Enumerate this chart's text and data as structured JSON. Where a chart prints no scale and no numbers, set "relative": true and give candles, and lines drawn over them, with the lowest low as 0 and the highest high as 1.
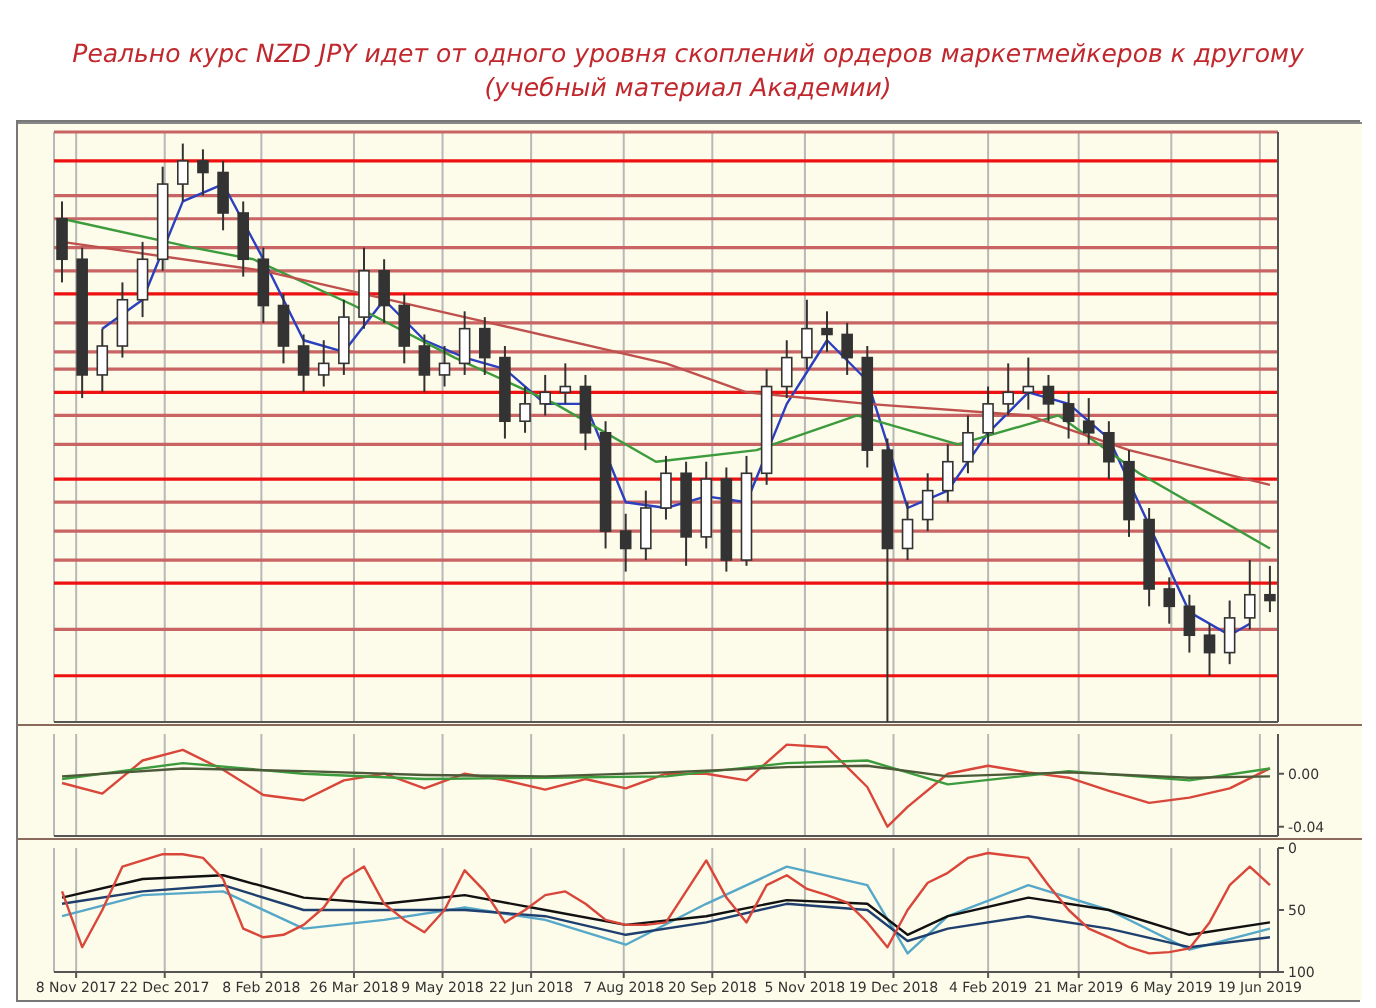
{
  "chart_data": [
    {
      "type": "candlestick",
      "title": "Реально курс NZD JPY идет от одного уровня скоплений ордеров маркетмейкеров к другому",
      "subtitle": "(учебный материал Академии)",
      "relative": true,
      "color": "#333333",
      "grid": "x",
      "legend": false,
      "marker": "none",
      "line_style": "solid",
      "tick_labels": false,
      "xlim": [
        "2017-10-28",
        "2019-06-28"
      ],
      "xticks": [
        "2017-11-08",
        "2017-12-22",
        "2018-02-08",
        "2018-03-26",
        "2018-05-09",
        "2018-06-22",
        "2018-08-07",
        "2018-09-20",
        "2018-11-05",
        "2018-12-19",
        "2019-02-04",
        "2019-03-21",
        "2019-05-06",
        "2019-06-19"
      ],
      "x": [
        "2017-11-01",
        "2017-11-11",
        "2017-11-21",
        "2017-12-01",
        "2017-12-11",
        "2017-12-21",
        "2017-12-31",
        "2018-01-10",
        "2018-01-20",
        "2018-01-30",
        "2018-02-09",
        "2018-02-19",
        "2018-03-01",
        "2018-03-11",
        "2018-03-21",
        "2018-03-31",
        "2018-04-10",
        "2018-04-20",
        "2018-04-30",
        "2018-05-10",
        "2018-05-20",
        "2018-05-30",
        "2018-06-09",
        "2018-06-19",
        "2018-06-29",
        "2018-07-09",
        "2018-07-19",
        "2018-07-29",
        "2018-08-08",
        "2018-08-18",
        "2018-08-28",
        "2018-09-07",
        "2018-09-17",
        "2018-09-27",
        "2018-10-07",
        "2018-10-17",
        "2018-10-27",
        "2018-11-06",
        "2018-11-16",
        "2018-11-26",
        "2018-12-06",
        "2018-12-16",
        "2018-12-26",
        "2019-01-05",
        "2019-01-15",
        "2019-01-25",
        "2019-02-04",
        "2019-02-14",
        "2019-02-24",
        "2019-03-06",
        "2019-03-16",
        "2019-03-26",
        "2019-04-05",
        "2019-04-15",
        "2019-04-25",
        "2019-05-05",
        "2019-05-15",
        "2019-05-25",
        "2019-06-04",
        "2019-06-14",
        "2019-06-24"
      ],
      "ohlc": [
        [
          0.87,
          0.9,
          0.76,
          0.8
        ],
        [
          0.8,
          0.82,
          0.56,
          0.6
        ],
        [
          0.6,
          0.68,
          0.57,
          0.65
        ],
        [
          0.65,
          0.76,
          0.63,
          0.73
        ],
        [
          0.73,
          0.83,
          0.7,
          0.8
        ],
        [
          0.8,
          0.96,
          0.78,
          0.93
        ],
        [
          0.93,
          1.0,
          0.9,
          0.97
        ],
        [
          0.97,
          0.99,
          0.91,
          0.95
        ],
        [
          0.95,
          0.97,
          0.85,
          0.88
        ],
        [
          0.88,
          0.9,
          0.77,
          0.8
        ],
        [
          0.8,
          0.82,
          0.69,
          0.72
        ],
        [
          0.72,
          0.74,
          0.62,
          0.65
        ],
        [
          0.65,
          0.67,
          0.57,
          0.6
        ],
        [
          0.6,
          0.66,
          0.58,
          0.62
        ],
        [
          0.62,
          0.73,
          0.6,
          0.7
        ],
        [
          0.7,
          0.82,
          0.68,
          0.78
        ],
        [
          0.78,
          0.8,
          0.69,
          0.72
        ],
        [
          0.72,
          0.74,
          0.62,
          0.65
        ],
        [
          0.65,
          0.67,
          0.57,
          0.6
        ],
        [
          0.6,
          0.65,
          0.58,
          0.62
        ],
        [
          0.62,
          0.71,
          0.6,
          0.68
        ],
        [
          0.68,
          0.7,
          0.6,
          0.63
        ],
        [
          0.63,
          0.65,
          0.49,
          0.52
        ],
        [
          0.52,
          0.58,
          0.5,
          0.55
        ],
        [
          0.55,
          0.6,
          0.53,
          0.57
        ],
        [
          0.57,
          0.62,
          0.55,
          0.58
        ],
        [
          0.58,
          0.6,
          0.47,
          0.5
        ],
        [
          0.5,
          0.52,
          0.3,
          0.33
        ],
        [
          0.33,
          0.36,
          0.26,
          0.3
        ],
        [
          0.3,
          0.4,
          0.28,
          0.37
        ],
        [
          0.37,
          0.46,
          0.35,
          0.43
        ],
        [
          0.43,
          0.45,
          0.27,
          0.32
        ],
        [
          0.32,
          0.45,
          0.3,
          0.42
        ],
        [
          0.42,
          0.44,
          0.26,
          0.28
        ],
        [
          0.28,
          0.46,
          0.27,
          0.43
        ],
        [
          0.43,
          0.61,
          0.41,
          0.58
        ],
        [
          0.58,
          0.66,
          0.56,
          0.63
        ],
        [
          0.63,
          0.73,
          0.61,
          0.68
        ],
        [
          0.68,
          0.71,
          0.64,
          0.67
        ],
        [
          0.67,
          0.69,
          0.6,
          0.63
        ],
        [
          0.63,
          0.65,
          0.44,
          0.47
        ],
        [
          0.47,
          0.49,
          0.0,
          0.3
        ],
        [
          0.3,
          0.38,
          0.28,
          0.35
        ],
        [
          0.35,
          0.43,
          0.33,
          0.4
        ],
        [
          0.4,
          0.48,
          0.38,
          0.45
        ],
        [
          0.45,
          0.53,
          0.43,
          0.5
        ],
        [
          0.5,
          0.58,
          0.48,
          0.55
        ],
        [
          0.55,
          0.62,
          0.53,
          0.57
        ],
        [
          0.57,
          0.63,
          0.54,
          0.58
        ],
        [
          0.58,
          0.6,
          0.52,
          0.55
        ],
        [
          0.55,
          0.57,
          0.49,
          0.52
        ],
        [
          0.52,
          0.56,
          0.48,
          0.5
        ],
        [
          0.5,
          0.52,
          0.42,
          0.45
        ],
        [
          0.45,
          0.47,
          0.32,
          0.35
        ],
        [
          0.35,
          0.37,
          0.2,
          0.23
        ],
        [
          0.23,
          0.25,
          0.17,
          0.2
        ],
        [
          0.2,
          0.22,
          0.12,
          0.15
        ],
        [
          0.15,
          0.17,
          0.08,
          0.12
        ],
        [
          0.12,
          0.21,
          0.1,
          0.18
        ],
        [
          0.18,
          0.28,
          0.16,
          0.22
        ],
        [
          0.22,
          0.27,
          0.19,
          0.21
        ]
      ],
      "series": [
        {
          "type": "line",
          "color": "#2b3fbf",
          "x": [
            "2017-11-21",
            "2017-12-11",
            "2017-12-31",
            "2018-01-20",
            "2018-02-09",
            "2018-03-01",
            "2018-03-21",
            "2018-04-10",
            "2018-04-30",
            "2018-05-20",
            "2018-06-09",
            "2018-06-29",
            "2018-07-19",
            "2018-08-08",
            "2018-08-28",
            "2018-09-17",
            "2018-10-07",
            "2018-10-27",
            "2018-11-16",
            "2018-12-06",
            "2018-12-26",
            "2019-01-15",
            "2019-02-04",
            "2019-02-24",
            "2019-03-16",
            "2019-04-05",
            "2019-04-25",
            "2019-05-15",
            "2019-06-04",
            "2019-06-14"
          ],
          "values": [
            0.68,
            0.73,
            0.9,
            0.93,
            0.8,
            0.66,
            0.64,
            0.73,
            0.66,
            0.63,
            0.61,
            0.55,
            0.55,
            0.38,
            0.37,
            0.39,
            0.38,
            0.55,
            0.66,
            0.59,
            0.37,
            0.4,
            0.5,
            0.57,
            0.55,
            0.49,
            0.34,
            0.19,
            0.15,
            0.17
          ]
        },
        {
          "type": "line",
          "color": "#3c9b3c",
          "x": [
            "2017-11-01",
            "2018-01-05",
            "2018-02-04",
            "2018-03-26",
            "2018-05-15",
            "2018-07-04",
            "2018-08-23",
            "2018-10-12",
            "2018-12-01",
            "2019-01-20",
            "2019-03-11",
            "2019-04-20",
            "2019-06-24"
          ],
          "values": [
            0.87,
            0.82,
            0.8,
            0.72,
            0.63,
            0.55,
            0.45,
            0.47,
            0.53,
            0.48,
            0.53,
            0.43,
            0.3
          ]
        },
        {
          "type": "line",
          "color": "#c0504d",
          "x": [
            "2017-11-01",
            "2018-02-09",
            "2018-05-20",
            "2018-08-28",
            "2018-10-07",
            "2018-12-06",
            "2019-02-24",
            "2019-04-15",
            "2019-06-24"
          ],
          "values": [
            0.83,
            0.78,
            0.7,
            0.62,
            0.57,
            0.55,
            0.53,
            0.47,
            0.41
          ]
        }
      ],
      "ref_lines": [
        {
          "axis": "y",
          "value": 1.02,
          "color": "#c86464"
        },
        {
          "axis": "y",
          "value": 0.97,
          "color": "#ee1111"
        },
        {
          "axis": "y",
          "value": 0.91,
          "color": "#c86464"
        },
        {
          "axis": "y",
          "value": 0.87,
          "color": "#c86464"
        },
        {
          "axis": "y",
          "value": 0.82,
          "color": "#c86464"
        },
        {
          "axis": "y",
          "value": 0.78,
          "color": "#c86464"
        },
        {
          "axis": "y",
          "value": 0.74,
          "color": "#ee1111"
        },
        {
          "axis": "y",
          "value": 0.69,
          "color": "#c86464"
        },
        {
          "axis": "y",
          "value": 0.64,
          "color": "#c86464"
        },
        {
          "axis": "y",
          "value": 0.61,
          "color": "#c86464"
        },
        {
          "axis": "y",
          "value": 0.57,
          "color": "#ee1111"
        },
        {
          "axis": "y",
          "value": 0.53,
          "color": "#c86464"
        },
        {
          "axis": "y",
          "value": 0.48,
          "color": "#c86464"
        },
        {
          "axis": "y",
          "value": 0.42,
          "color": "#ee1111"
        },
        {
          "axis": "y",
          "value": 0.38,
          "color": "#c86464"
        },
        {
          "axis": "y",
          "value": 0.33,
          "color": "#c86464"
        },
        {
          "axis": "y",
          "value": 0.28,
          "color": "#c86464"
        },
        {
          "axis": "y",
          "value": 0.24,
          "color": "#ee1111"
        },
        {
          "axis": "y",
          "value": 0.16,
          "color": "#c86464"
        },
        {
          "axis": "y",
          "value": 0.08,
          "color": "#ee1111"
        }
      ]
    },
    {
      "type": "line",
      "grid": "x",
      "legend": false,
      "marker": "none",
      "line_style": "solid",
      "tick_labels": "y",
      "xlim": [
        "2017-10-28",
        "2019-06-28"
      ],
      "xticks": [
        "2017-11-08",
        "2017-12-22",
        "2018-02-08",
        "2018-03-26",
        "2018-05-09",
        "2018-06-22",
        "2018-08-07",
        "2018-09-20",
        "2018-11-05",
        "2018-12-19",
        "2019-02-04",
        "2019-03-21",
        "2019-05-06",
        "2019-06-19"
      ],
      "ylim": [
        -0.047,
        0.03
      ],
      "yticks": [
        {
          "value": 0,
          "label": "0.00"
        },
        -0.04
      ],
      "series": [
        {
          "color": "#d9463a",
          "x": [
            "2017-11-01",
            "2017-11-21",
            "2017-12-11",
            "2017-12-31",
            "2018-01-20",
            "2018-02-09",
            "2018-03-01",
            "2018-03-21",
            "2018-04-10",
            "2018-04-30",
            "2018-05-20",
            "2018-06-09",
            "2018-06-29",
            "2018-07-19",
            "2018-08-08",
            "2018-08-28",
            "2018-09-17",
            "2018-10-07",
            "2018-10-27",
            "2018-11-16",
            "2018-12-06",
            "2018-12-16",
            "2018-12-26",
            "2019-01-15",
            "2019-02-04",
            "2019-02-24",
            "2019-03-16",
            "2019-04-05",
            "2019-04-25",
            "2019-05-15",
            "2019-06-04",
            "2019-06-24"
          ],
          "values": [
            -0.007,
            -0.015,
            0.01,
            0.018,
            0.003,
            -0.016,
            -0.02,
            -0.005,
            0,
            -0.011,
            0,
            -0.005,
            -0.012,
            -0.004,
            -0.011,
            0,
            0,
            -0.005,
            0.022,
            0.02,
            -0.01,
            -0.04,
            -0.025,
            0,
            0.006,
            0.001,
            -0.003,
            -0.013,
            -0.022,
            -0.018,
            -0.011,
            0.004
          ]
        },
        {
          "color": "#3c9b3c",
          "x": [
            "2017-11-01",
            "2017-12-31",
            "2018-03-01",
            "2018-04-30",
            "2018-06-29",
            "2018-08-28",
            "2018-10-27",
            "2018-12-06",
            "2019-01-15",
            "2019-03-16",
            "2019-05-15",
            "2019-06-24"
          ],
          "values": [
            -0.004,
            0.008,
            0,
            -0.004,
            -0.003,
            -0.002,
            0.008,
            0.01,
            -0.008,
            0.002,
            -0.005,
            0.004
          ]
        },
        {
          "color": "#4d5a3a",
          "x": [
            "2017-11-01",
            "2017-12-31",
            "2018-03-01",
            "2018-04-30",
            "2018-06-29",
            "2018-08-28",
            "2018-10-27",
            "2018-12-06",
            "2019-01-15",
            "2019-03-16",
            "2019-05-15",
            "2019-06-24"
          ],
          "values": [
            -0.002,
            0.004,
            0.002,
            -0.001,
            -0.002,
            0.001,
            0.005,
            0.006,
            -0.002,
            0.001,
            -0.003,
            -0.002
          ]
        }
      ]
    },
    {
      "type": "line",
      "grid": "x",
      "legend": false,
      "marker": "none",
      "line_style": "solid",
      "xlim": [
        "2017-10-28",
        "2019-06-28"
      ],
      "xticks": [
        {
          "value": "2017-11-08",
          "label": "8 Nov 2017"
        },
        {
          "value": "2017-12-22",
          "label": "22 Dec 2017"
        },
        {
          "value": "2018-02-08",
          "label": "8 Feb 2018"
        },
        {
          "value": "2018-03-26",
          "label": "26 Mar 2018"
        },
        {
          "value": "2018-05-09",
          "label": "9 May 2018"
        },
        {
          "value": "2018-06-22",
          "label": "22 Jun 2018"
        },
        {
          "value": "2018-08-07",
          "label": "7 Aug 2018"
        },
        {
          "value": "2018-09-20",
          "label": "20 Sep 2018"
        },
        {
          "value": "2018-11-05",
          "label": "5 Nov 2018"
        },
        {
          "value": "2018-12-19",
          "label": "19 Dec 2018"
        },
        {
          "value": "2019-02-04",
          "label": "4 Feb 2019"
        },
        {
          "value": "2019-03-21",
          "label": "21 Mar 2019"
        },
        {
          "value": "2019-05-06",
          "label": "6 May 2019"
        },
        {
          "value": "2019-06-19",
          "label": "19 Jun 2019"
        }
      ],
      "ylim": [
        100,
        0
      ],
      "yticks": [
        0,
        50,
        100
      ],
      "series": [
        {
          "color": "#55a8c8",
          "x": [
            "2017-11-01",
            "2017-12-11",
            "2018-01-20",
            "2018-03-01",
            "2018-04-10",
            "2018-05-20",
            "2018-06-29",
            "2018-08-08",
            "2018-09-17",
            "2018-10-27",
            "2018-12-06",
            "2018-12-26",
            "2019-01-15",
            "2019-02-24",
            "2019-04-05",
            "2019-05-15",
            "2019-06-24"
          ],
          "values": [
            55,
            38,
            35,
            65,
            58,
            48,
            58,
            78,
            45,
            15,
            30,
            85,
            55,
            30,
            50,
            82,
            65
          ]
        },
        {
          "color": "#1f3f6e",
          "x": [
            "2017-11-01",
            "2017-12-11",
            "2018-01-20",
            "2018-03-01",
            "2018-04-10",
            "2018-05-20",
            "2018-06-29",
            "2018-08-08",
            "2018-09-17",
            "2018-10-27",
            "2018-12-06",
            "2018-12-26",
            "2019-01-15",
            "2019-02-24",
            "2019-04-05",
            "2019-05-15",
            "2019-06-24"
          ],
          "values": [
            45,
            35,
            30,
            50,
            50,
            50,
            55,
            70,
            60,
            45,
            50,
            75,
            65,
            55,
            65,
            80,
            72
          ]
        },
        {
          "color": "#111111",
          "x": [
            "2017-11-01",
            "2017-12-11",
            "2018-01-20",
            "2018-03-01",
            "2018-04-10",
            "2018-05-20",
            "2018-06-29",
            "2018-08-08",
            "2018-09-17",
            "2018-10-27",
            "2018-12-06",
            "2018-12-26",
            "2019-01-15",
            "2019-02-24",
            "2019-04-05",
            "2019-05-15",
            "2019-06-24"
          ],
          "values": [
            40,
            25,
            22,
            40,
            45,
            38,
            50,
            62,
            55,
            42,
            45,
            70,
            55,
            40,
            50,
            70,
            60
          ]
        },
        {
          "color": "#d9463a",
          "x": [
            "2017-11-01",
            "2017-11-11",
            "2017-11-21",
            "2017-12-01",
            "2017-12-11",
            "2017-12-21",
            "2017-12-31",
            "2018-01-10",
            "2018-01-20",
            "2018-01-30",
            "2018-02-09",
            "2018-02-19",
            "2018-03-01",
            "2018-03-11",
            "2018-03-21",
            "2018-03-31",
            "2018-04-10",
            "2018-04-20",
            "2018-04-30",
            "2018-05-10",
            "2018-05-20",
            "2018-05-30",
            "2018-06-09",
            "2018-06-19",
            "2018-06-29",
            "2018-07-09",
            "2018-07-19",
            "2018-07-29",
            "2018-08-08",
            "2018-08-18",
            "2018-08-28",
            "2018-09-07",
            "2018-09-17",
            "2018-09-27",
            "2018-10-07",
            "2018-10-17",
            "2018-10-27",
            "2018-11-06",
            "2018-11-16",
            "2018-11-26",
            "2018-12-06",
            "2018-12-16",
            "2018-12-26",
            "2019-01-05",
            "2019-01-15",
            "2019-01-25",
            "2019-02-04",
            "2019-02-14",
            "2019-02-24",
            "2019-03-06",
            "2019-03-16",
            "2019-03-26",
            "2019-04-05",
            "2019-04-15",
            "2019-04-25",
            "2019-05-05",
            "2019-05-15",
            "2019-05-25",
            "2019-06-04",
            "2019-06-14",
            "2019-06-24"
          ],
          "values": [
            35,
            80,
            50,
            15,
            10,
            5,
            5,
            8,
            25,
            65,
            72,
            70,
            62,
            48,
            25,
            15,
            45,
            58,
            68,
            50,
            18,
            35,
            60,
            50,
            38,
            35,
            45,
            58,
            62,
            62,
            60,
            35,
            10,
            40,
            60,
            30,
            22,
            33,
            38,
            44,
            60,
            80,
            50,
            28,
            20,
            8,
            4,
            6,
            8,
            30,
            50,
            65,
            72,
            80,
            85,
            84,
            81,
            60,
            30,
            15,
            30
          ]
        }
      ]
    }
  ]
}
